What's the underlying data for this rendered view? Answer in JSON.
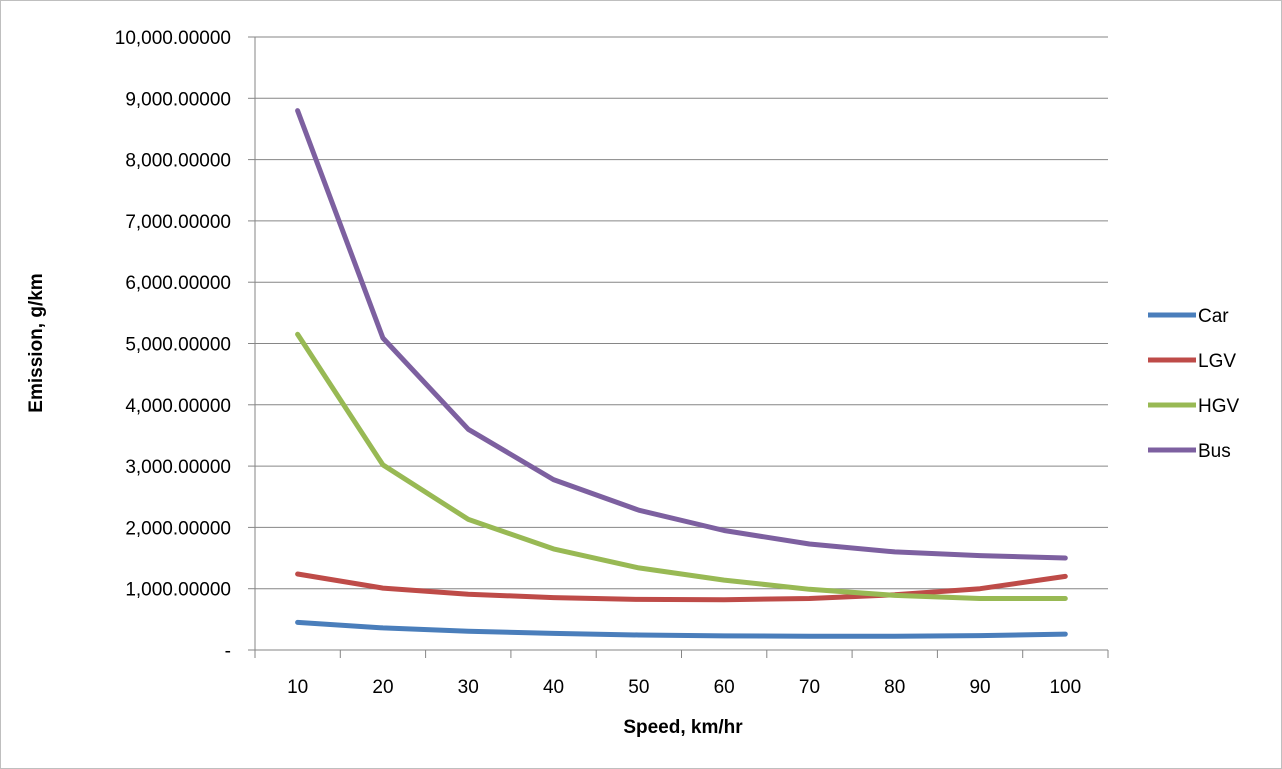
{
  "chart_data": {
    "type": "line",
    "xlabel": "Speed, km/hr",
    "ylabel": "Emission, g/km",
    "x": [
      10,
      20,
      30,
      40,
      50,
      60,
      70,
      80,
      90,
      100
    ],
    "x_tick_labels": [
      "10",
      "20",
      "30",
      "40",
      "50",
      "60",
      "70",
      "80",
      "90",
      "100"
    ],
    "ylim": [
      0,
      10000
    ],
    "y_ticks": [
      0,
      1000,
      2000,
      3000,
      4000,
      5000,
      6000,
      7000,
      8000,
      9000,
      10000
    ],
    "y_tick_labels": [
      "-",
      "1,000.00000",
      "2,000.00000",
      "3,000.00000",
      "4,000.00000",
      "5,000.00000",
      "6,000.00000",
      "7,000.00000",
      "8,000.00000",
      "9,000.00000",
      "10,000.00000"
    ],
    "grid": "horizontal",
    "legend_position": "right",
    "series": [
      {
        "name": "Car",
        "color": "#4a7ebb",
        "values": [
          450,
          360,
          305,
          270,
          245,
          230,
          225,
          225,
          235,
          260
        ]
      },
      {
        "name": "LGV",
        "color": "#be4b48",
        "values": [
          1240,
          1010,
          910,
          855,
          825,
          820,
          840,
          900,
          1000,
          1200
        ]
      },
      {
        "name": "HGV",
        "color": "#98b954",
        "values": [
          5150,
          3020,
          2130,
          1650,
          1340,
          1140,
          990,
          890,
          840,
          840
        ]
      },
      {
        "name": "Bus",
        "color": "#7d60a0",
        "values": [
          8800,
          5090,
          3600,
          2780,
          2280,
          1950,
          1730,
          1600,
          1540,
          1500
        ]
      }
    ]
  }
}
